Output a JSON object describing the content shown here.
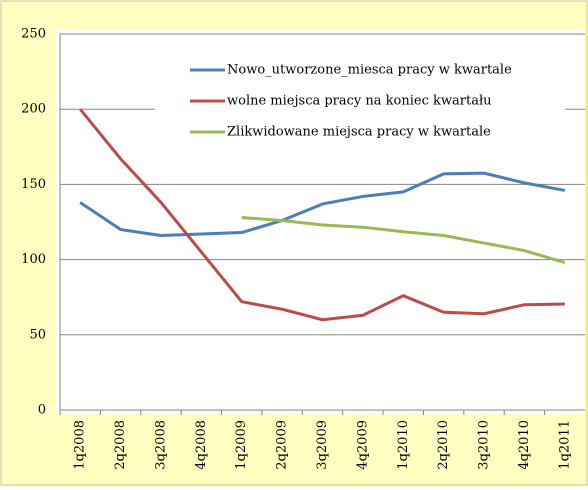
{
  "chart_data": {
    "type": "line",
    "categories": [
      "1q2008",
      "2q2008",
      "3q2008",
      "4q2008",
      "1q2009",
      "2q2009",
      "3q2009",
      "4q2009",
      "1q2010",
      "2q2010",
      "3q2010",
      "4q2010",
      "1q2011"
    ],
    "series": [
      {
        "name": "Nowo_utworzone_miesca pracy w kwartale",
        "color": "#4a7ebb",
        "values": [
          138,
          120,
          116,
          117,
          118,
          126,
          137,
          142,
          145,
          157,
          157.5,
          151,
          146
        ]
      },
      {
        "name": "wolne miejsca pracy na koniec kwartału",
        "color": "#be4b48",
        "values": [
          200,
          167,
          138,
          105,
          72,
          67,
          60,
          63,
          76,
          65,
          64,
          70,
          70.5
        ]
      },
      {
        "name": "Zlikwidowane miejsca pracy w kwartale",
        "color": "#98b954",
        "values": [
          null,
          null,
          null,
          null,
          128,
          126,
          123,
          121.5,
          118.5,
          116,
          111,
          106,
          98
        ]
      }
    ],
    "ylim": [
      0,
      250
    ],
    "yticks": [
      0,
      50,
      100,
      150,
      200,
      250
    ],
    "grid": true
  }
}
